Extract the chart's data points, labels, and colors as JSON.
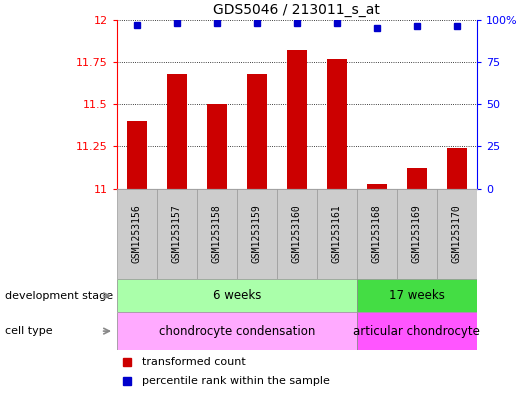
{
  "title": "GDS5046 / 213011_s_at",
  "samples": [
    "GSM1253156",
    "GSM1253157",
    "GSM1253158",
    "GSM1253159",
    "GSM1253160",
    "GSM1253161",
    "GSM1253168",
    "GSM1253169",
    "GSM1253170"
  ],
  "bar_values": [
    11.4,
    11.68,
    11.5,
    11.68,
    11.82,
    11.77,
    11.03,
    11.12,
    11.24
  ],
  "percentile_values": [
    97,
    98,
    98,
    98,
    98,
    98,
    95,
    96,
    96
  ],
  "bar_color": "#cc0000",
  "percentile_color": "#0000cc",
  "ylim_left": [
    11.0,
    12.0
  ],
  "ylim_right": [
    0,
    100
  ],
  "yticks_left": [
    11.0,
    11.25,
    11.5,
    11.75,
    12.0
  ],
  "yticks_right": [
    0,
    25,
    50,
    75,
    100
  ],
  "ytick_labels_left": [
    "11",
    "11.25",
    "11.5",
    "11.75",
    "12"
  ],
  "ytick_labels_right": [
    "0",
    "25",
    "50",
    "75",
    "100%"
  ],
  "stage_labels": [
    {
      "label": "6 weeks",
      "start": 0,
      "end": 6,
      "color": "#aaffaa"
    },
    {
      "label": "17 weeks",
      "start": 6,
      "end": 9,
      "color": "#44dd44"
    }
  ],
  "cell_type_labels": [
    {
      "label": "chondrocyte condensation",
      "start": 0,
      "end": 6,
      "color": "#ffaaff"
    },
    {
      "label": "articular chondrocyte",
      "start": 6,
      "end": 9,
      "color": "#ff55ff"
    }
  ],
  "dev_stage_row_label": "development stage",
  "cell_type_row_label": "cell type",
  "legend_bar_label": "transformed count",
  "legend_percentile_label": "percentile rank within the sample",
  "bar_width": 0.5,
  "sample_box_color": "#cccccc",
  "sample_box_edge_color": "#999999"
}
